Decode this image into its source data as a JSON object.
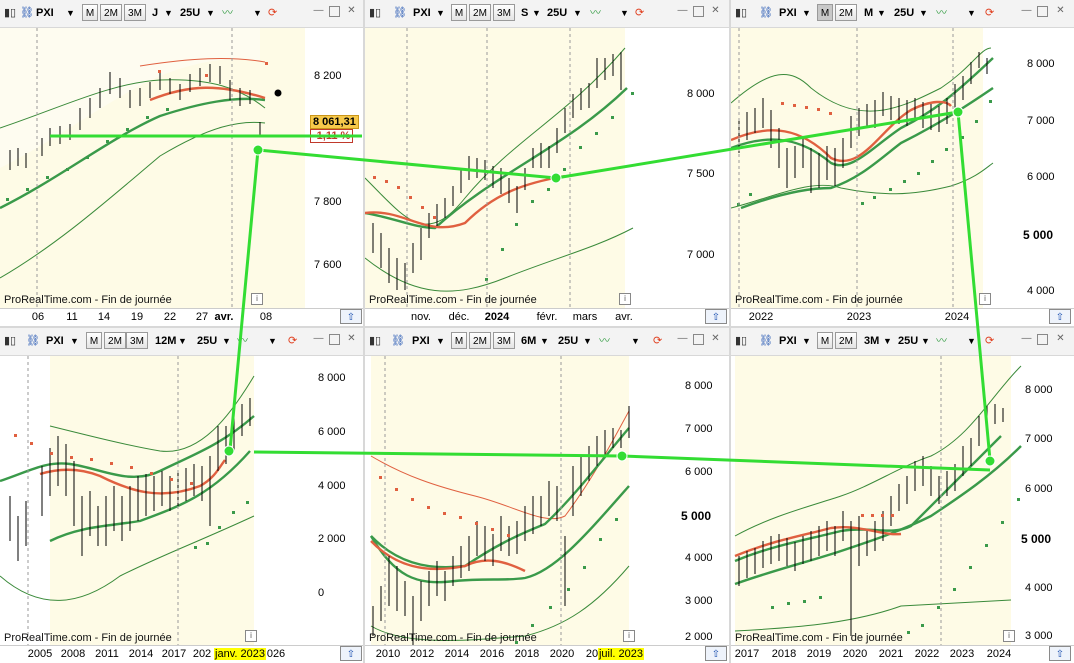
{
  "common": {
    "symbol": "PXI",
    "btn_m": "M",
    "btn_2m": "2M",
    "btn_3m": "3M",
    "units": "25U",
    "source": "ProRealTime.com - Fin de journée",
    "info": "i"
  },
  "panels": [
    {
      "period": "J",
      "y_ticks": [
        "8 200",
        "8 000",
        "7 800",
        "7 600"
      ],
      "x_ticks": [
        "06",
        "11",
        "14",
        "19",
        "22",
        "27",
        "avr.",
        "08"
      ],
      "price": "8 061,31",
      "change": "-1,11 %"
    },
    {
      "period": "S",
      "y_ticks": [
        "8 000",
        "7 500",
        "7 000"
      ],
      "x_ticks": [
        "nov.",
        "déc.",
        "2024",
        "févr.",
        "mars",
        "avr."
      ]
    },
    {
      "period": "M",
      "y_ticks": [
        "8 000",
        "7 000",
        "6 000",
        "5 000",
        "4 000"
      ],
      "x_ticks": [
        "2022",
        "2023",
        "2024"
      ]
    },
    {
      "period": "12M",
      "y_ticks": [
        "8 000",
        "6 000",
        "4 000",
        "2 000",
        "0"
      ],
      "x_ticks": [
        "2005",
        "2008",
        "2011",
        "2014",
        "2017",
        "202",
        "026"
      ],
      "x_highlight": "janv. 2023"
    },
    {
      "period": "6M",
      "y_ticks": [
        "8 000",
        "7 000",
        "6 000",
        "5 000",
        "4 000",
        "3 000",
        "2 000"
      ],
      "x_ticks": [
        "2010",
        "2012",
        "2014",
        "2016",
        "2018",
        "2020",
        "202"
      ],
      "x_highlight": "juil. 2023"
    },
    {
      "period": "3M",
      "y_ticks": [
        "8 000",
        "7 000",
        "6 000",
        "5 000",
        "4 000",
        "3 000"
      ],
      "x_ticks": [
        "2017",
        "2018",
        "2019",
        "2020",
        "2021",
        "2022",
        "2023",
        "2024"
      ]
    }
  ]
}
